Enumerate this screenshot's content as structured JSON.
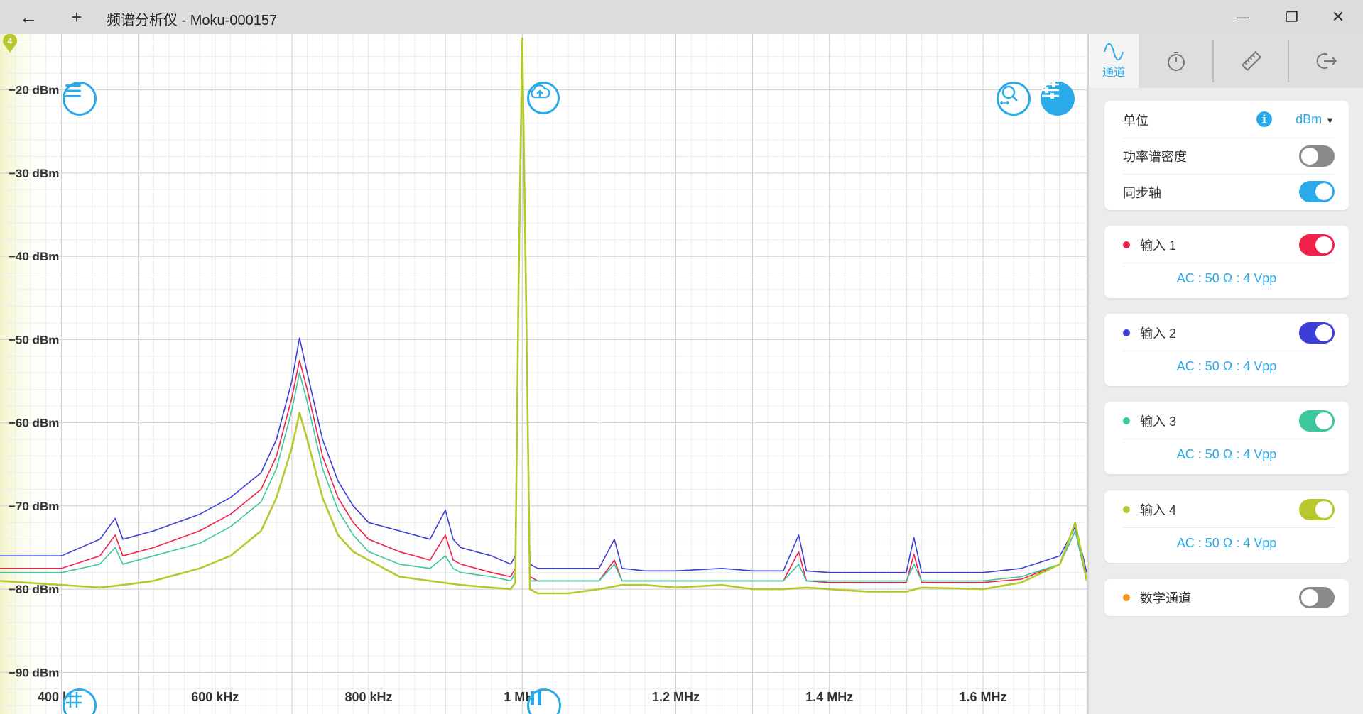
{
  "window": {
    "title": "频谱分析仪 - Moku-000157",
    "back_icon": "←",
    "new_icon": "+",
    "minimize_icon": "—",
    "maximize_icon": "❐",
    "close_icon": "✕"
  },
  "marker_badge": "4",
  "tabs": [
    {
      "icon": "waveform-icon",
      "label": "通道"
    },
    {
      "icon": "stopwatch-icon"
    },
    {
      "icon": "ruler-icon"
    },
    {
      "icon": "exit-icon"
    }
  ],
  "settings": {
    "unit_label": "单位",
    "unit_value": "dBm",
    "psd_label": "功率谱密度",
    "psd_on": false,
    "sync_label": "同步轴",
    "sync_on": true
  },
  "channels": [
    {
      "name": "输入 1",
      "color": "#f0224b",
      "on": true,
      "config": "AC : 50 Ω : 4 Vpp"
    },
    {
      "name": "输入 2",
      "color": "#3b3fd8",
      "on": true,
      "config": "AC : 50 Ω : 4 Vpp"
    },
    {
      "name": "输入 3",
      "color": "#3cc79c",
      "on": true,
      "config": "AC : 50 Ω : 4 Vpp"
    },
    {
      "name": "输入 4",
      "color": "#b8c82c",
      "on": true,
      "config": "AC : 50 Ω : 4 Vpp"
    }
  ],
  "math_channel": {
    "name": "数学通道",
    "color": "#f7931e",
    "on": false
  },
  "chart_data": {
    "type": "line",
    "xlim": [
      320,
      1735
    ],
    "ylim": [
      -95,
      -13.3
    ],
    "x_unit": "kHz",
    "y_unit": "dBm",
    "y_ticks": [
      {
        "value": -20,
        "label": "−20 dBm"
      },
      {
        "value": -30,
        "label": "−30 dBm"
      },
      {
        "value": -40,
        "label": "−40 dBm"
      },
      {
        "value": -50,
        "label": "−50 dBm"
      },
      {
        "value": -60,
        "label": "−60 dBm"
      },
      {
        "value": -70,
        "label": "−70 dBm"
      },
      {
        "value": -80,
        "label": "−80 dBm"
      },
      {
        "value": -90,
        "label": "−90 dBm"
      }
    ],
    "x_ticks": [
      {
        "value": 400,
        "label": "400 kHz"
      },
      {
        "value": 600,
        "label": "600 kHz"
      },
      {
        "value": 800,
        "label": "800 kHz"
      },
      {
        "value": 1000,
        "label": "1 MHz"
      },
      {
        "value": 1200,
        "label": "1.2 MHz"
      },
      {
        "value": 1400,
        "label": "1.4 MHz"
      },
      {
        "value": 1600,
        "label": "1.6 MHz"
      }
    ],
    "grid": true,
    "series": [
      {
        "color": "#3b3fd8",
        "x": [
          320,
          400,
          450,
          470,
          480,
          520,
          580,
          620,
          660,
          680,
          700,
          710,
          720,
          740,
          760,
          780,
          800,
          840,
          880,
          900,
          910,
          920,
          960,
          985,
          991,
          995,
          1000,
          1005,
          1010,
          1020,
          1060,
          1100,
          1120,
          1130,
          1160,
          1200,
          1260,
          1300,
          1340,
          1360,
          1370,
          1400,
          1450,
          1500,
          1510,
          1520,
          1600,
          1650,
          1700,
          1720,
          1730,
          1735
        ],
        "y": [
          -76,
          -76,
          -74,
          -71.5,
          -74,
          -73,
          -71,
          -69,
          -66,
          -62,
          -55,
          -49.8,
          -54,
          -62,
          -67,
          -70,
          -72,
          -73,
          -74,
          -70.5,
          -74,
          -75,
          -76,
          -77,
          -76,
          -45,
          -14,
          -45,
          -77,
          -77.5,
          -77.5,
          -77.5,
          -74,
          -77.5,
          -77.8,
          -77.8,
          -77.5,
          -77.8,
          -77.8,
          -73.5,
          -77.8,
          -78,
          -78,
          -78,
          -73.8,
          -78,
          -78,
          -77.5,
          -76,
          -72.5,
          -76,
          -78
        ]
      },
      {
        "color": "#f0224b",
        "x": [
          320,
          400,
          450,
          470,
          480,
          520,
          580,
          620,
          660,
          680,
          700,
          710,
          720,
          740,
          760,
          780,
          800,
          840,
          880,
          900,
          910,
          920,
          960,
          985,
          991,
          995,
          1000,
          1005,
          1010,
          1020,
          1060,
          1100,
          1120,
          1130,
          1160,
          1200,
          1260,
          1300,
          1340,
          1360,
          1370,
          1400,
          1450,
          1500,
          1510,
          1520,
          1600,
          1650,
          1700,
          1720,
          1730,
          1735
        ],
        "y": [
          -77.5,
          -77.5,
          -76,
          -73.5,
          -76,
          -75,
          -73,
          -71,
          -68,
          -64,
          -57,
          -52.5,
          -56,
          -64,
          -69,
          -72,
          -74,
          -75.5,
          -76.5,
          -73.5,
          -76.5,
          -77,
          -78,
          -78.5,
          -77.5,
          -45,
          -14,
          -45,
          -78.5,
          -79,
          -79,
          -79,
          -76.5,
          -79,
          -79,
          -79,
          -79,
          -79,
          -79,
          -75.5,
          -79,
          -79.2,
          -79.2,
          -79.2,
          -75.8,
          -79.2,
          -79.2,
          -78.8,
          -77,
          -73,
          -77,
          -79
        ]
      },
      {
        "color": "#3cc79c",
        "x": [
          320,
          400,
          450,
          470,
          480,
          520,
          580,
          620,
          660,
          680,
          700,
          710,
          720,
          740,
          760,
          780,
          800,
          840,
          880,
          900,
          910,
          920,
          960,
          985,
          991,
          995,
          1000,
          1005,
          1010,
          1020,
          1060,
          1100,
          1120,
          1130,
          1160,
          1200,
          1260,
          1300,
          1340,
          1360,
          1370,
          1400,
          1450,
          1500,
          1510,
          1520,
          1600,
          1650,
          1700,
          1720,
          1730,
          1735
        ],
        "y": [
          -78,
          -78,
          -77,
          -75,
          -77,
          -76,
          -74.5,
          -72.5,
          -69.5,
          -65.5,
          -58.5,
          -54,
          -57.5,
          -65.5,
          -70.5,
          -73.5,
          -75.5,
          -77,
          -77.5,
          -76,
          -77.5,
          -78,
          -78.5,
          -79,
          -78,
          -45,
          -14,
          -45,
          -79,
          -79,
          -79,
          -79,
          -77,
          -79,
          -79,
          -79,
          -79,
          -79,
          -79,
          -77,
          -79,
          -79,
          -79,
          -79,
          -77,
          -79,
          -79,
          -78.5,
          -77,
          -73,
          -77,
          -79
        ]
      },
      {
        "color": "#b8c82c",
        "x": [
          320,
          400,
          450,
          480,
          520,
          580,
          620,
          660,
          680,
          700,
          710,
          720,
          740,
          760,
          780,
          800,
          840,
          880,
          920,
          960,
          985,
          991,
          995,
          1000,
          1005,
          1010,
          1020,
          1060,
          1100,
          1130,
          1160,
          1200,
          1260,
          1300,
          1340,
          1370,
          1400,
          1450,
          1500,
          1520,
          1600,
          1650,
          1700,
          1720,
          1730,
          1735
        ],
        "y": [
          -79,
          -79.5,
          -79.8,
          -79.5,
          -79,
          -77.5,
          -76,
          -73,
          -69,
          -63,
          -58.8,
          -62,
          -69,
          -73.5,
          -75.5,
          -76.5,
          -78.5,
          -79,
          -79.5,
          -79.8,
          -80,
          -79.2,
          -45,
          -13.8,
          -45,
          -80,
          -80.5,
          -80.5,
          -80,
          -79.5,
          -79.5,
          -79.8,
          -79.5,
          -80,
          -80,
          -79.8,
          -80,
          -80.3,
          -80.3,
          -79.8,
          -80,
          -79.2,
          -77,
          -72,
          -76.5,
          -79
        ]
      }
    ]
  }
}
